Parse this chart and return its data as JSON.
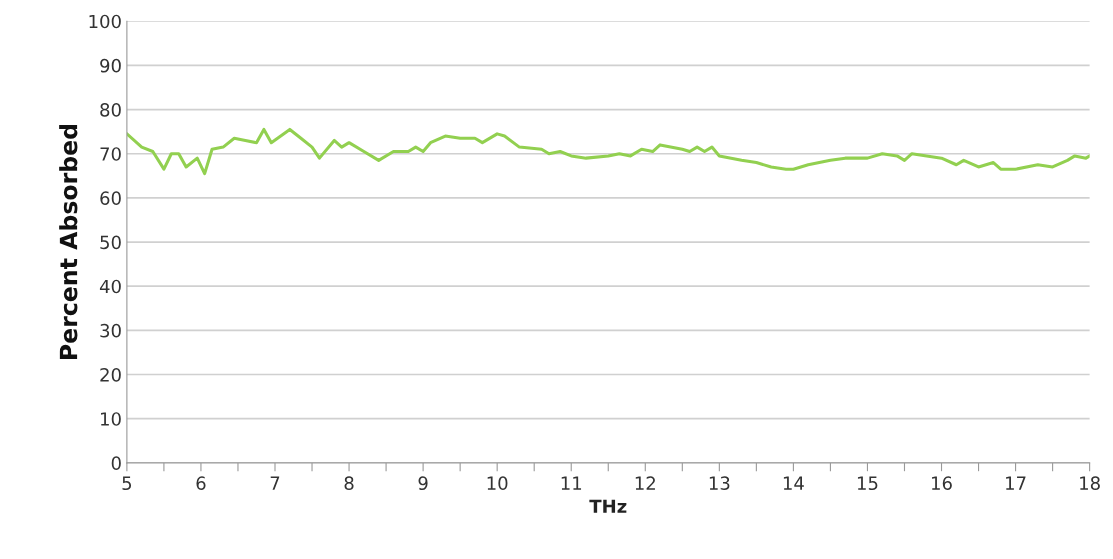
{
  "chart_data": {
    "type": "line",
    "xlabel": "THz",
    "ylabel": "Percent Absorbed",
    "xlim": [
      5,
      18
    ],
    "ylim": [
      0,
      100
    ],
    "xticks": [
      5,
      {
        "value": 5.5,
        "label": null
      },
      6,
      {
        "value": 6.5,
        "label": null
      },
      7,
      {
        "value": 7.5,
        "label": null
      },
      8,
      {
        "value": 8.5,
        "label": null
      },
      9,
      {
        "value": 9.5,
        "label": null
      },
      10,
      {
        "value": 10.5,
        "label": null
      },
      11,
      {
        "value": 11.5,
        "label": null
      },
      12,
      {
        "value": 12.5,
        "label": null
      },
      13,
      {
        "value": 13.5,
        "label": null
      },
      14,
      {
        "value": 14.5,
        "label": null
      },
      15,
      {
        "value": 15.5,
        "label": null
      },
      16,
      {
        "value": 16.5,
        "label": null
      },
      17,
      {
        "value": 17.5,
        "label": null
      },
      18
    ],
    "yticks": [
      0,
      10,
      20,
      30,
      40,
      50,
      60,
      70,
      80,
      90,
      100
    ],
    "grid": "y",
    "legend": false,
    "marker": "none",
    "line_style": "solid",
    "series": [
      {
        "color": "#92d050",
        "x": [
          5.0,
          5.2,
          5.35,
          5.5,
          5.6,
          5.7,
          5.8,
          5.95,
          6.05,
          6.15,
          6.3,
          6.45,
          6.6,
          6.75,
          6.85,
          6.95,
          7.2,
          7.35,
          7.5,
          7.6,
          7.8,
          7.9,
          8.0,
          8.2,
          8.4,
          8.6,
          8.8,
          8.9,
          9.0,
          9.1,
          9.3,
          9.5,
          9.7,
          9.8,
          10.0,
          10.1,
          10.3,
          10.6,
          10.7,
          10.85,
          11.0,
          11.2,
          11.5,
          11.65,
          11.8,
          11.95,
          12.1,
          12.2,
          12.5,
          12.6,
          12.7,
          12.8,
          12.9,
          13.0,
          13.3,
          13.5,
          13.7,
          13.9,
          14.0,
          14.2,
          14.5,
          14.7,
          14.9,
          15.0,
          15.2,
          15.4,
          15.5,
          15.6,
          15.8,
          16.0,
          16.2,
          16.3,
          16.5,
          16.7,
          16.8,
          17.0,
          17.3,
          17.5,
          17.7,
          17.8,
          17.95,
          18.0
        ],
        "values": [
          74.5,
          71.5,
          70.5,
          66.5,
          70,
          70,
          67,
          69,
          65.5,
          71,
          71.5,
          73.5,
          73,
          72.5,
          75.5,
          72.5,
          75.5,
          73.5,
          71.5,
          69,
          73,
          71.5,
          72.5,
          70.5,
          68.5,
          70.5,
          70.5,
          71.5,
          70.5,
          72.5,
          74,
          73.5,
          73.5,
          72.5,
          74.5,
          74,
          71.5,
          71,
          70,
          70.5,
          69.5,
          69,
          69.5,
          70,
          69.5,
          71,
          70.5,
          72,
          71,
          70.5,
          71.5,
          70.5,
          71.5,
          69.5,
          68.5,
          68,
          67,
          66.5,
          66.5,
          67.5,
          68.5,
          69,
          69,
          69,
          70,
          69.5,
          68.5,
          70,
          69.5,
          69,
          67.5,
          68.5,
          67,
          68,
          66.5,
          66.5,
          67.5,
          67,
          68.5,
          69.5,
          69,
          69.5
        ]
      }
    ]
  }
}
